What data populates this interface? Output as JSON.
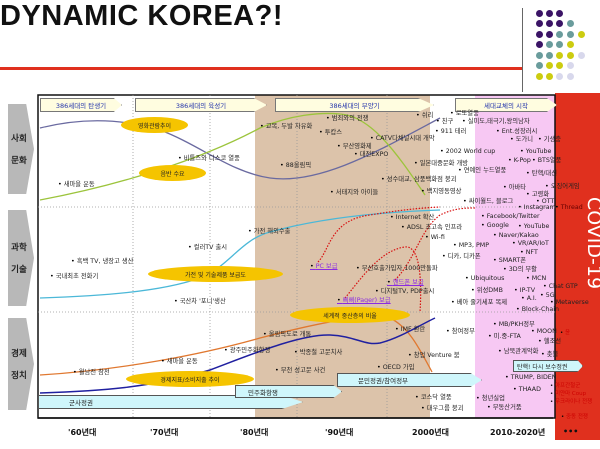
{
  "title": "DYNAMIC KOREA?!",
  "colors": {
    "accent_red": "#e0301e",
    "brown_band": "#dcc3aa",
    "pink_band": "#f7c8f3",
    "ellipse": "#f5c400"
  },
  "sides": [
    {
      "line1": "사회",
      "line2": "문화"
    },
    {
      "line1": "과학",
      "line2": "기술"
    },
    {
      "line1": "경제",
      "line2": "정치"
    }
  ],
  "headers": [
    "386세대의 탄생기",
    "386세대의 육성기",
    "386세대의 부양기",
    "세대교체의 시작"
  ],
  "covid": "COVID-19",
  "axis": [
    "'60년대",
    "'70년대",
    "'80년대",
    "'90년대",
    "2000년대",
    "2010-2020년",
    "•••"
  ],
  "social": {
    "ellipses": [
      "영화관람추이",
      "음반 수요"
    ],
    "items": [
      "새마을 운동",
      "비틀즈와 디스코 열풍",
      "교복, 두발 자유화",
      "88올림픽",
      "범죄와의 전쟁",
      "투캅스",
      "CATV다채널시대 개막",
      "부산영화제",
      "대전EXPO",
      "서태지와 아이들",
      "성수대교, 삼풍백화점 붕괴",
      "일본대중문화 개방",
      "백지영동영상",
      "쉬리",
      "친구",
      "로또열풍",
      "실미도,태극기,왕의남자",
      "911 테러",
      "Ent.성장러시",
      "도가니",
      "기생충",
      "2002 World cup",
      "YouTube",
      "K-Pop",
      "BTS열풍",
      "연예인 누드열풍",
      "탄핵/대선",
      "아바타",
      "오징어게임",
      "고령화",
      "싸이월드, 블로그",
      "OTT",
      "Instagram",
      "Thread"
    ]
  },
  "tech": {
    "ellipses": [
      "가전 및 기술제품 보급도"
    ],
    "items": [
      "국내최초 전화기",
      "흑백 TV, 냉장고 생산",
      "컬러TV 출시",
      "가전 해외수출",
      "국산차 '포니'생산",
      "Internet 확산",
      "ADSL 초고속 인프라",
      "Wi-fi",
      "무선호출가입자 1000만돌파",
      "디지털TV, PDP출시",
      "MP3, PMP",
      "디카, 디카폰",
      "Facebook/Twitter",
      "Google",
      "YouTube",
      "Naver/Kakao",
      "VR/AR/IoT",
      "NFT",
      "SMART폰",
      "3D의 부활",
      "Ubiquitous",
      "MCN",
      "위성DMB",
      "IP-TV",
      "Chat GTP",
      "A.I.",
      "5G",
      "Metaverse",
      "베아 줄기세포 복제",
      "Block-Chain"
    ],
    "links": [
      "PC 보급",
      "핸드폰 보급",
      "삐삐(Pager) 보급"
    ]
  },
  "econ": {
    "ellipses": [
      "세계적 중산층의 비율",
      "경제지표/소비지출 추이"
    ],
    "banners": [
      "군사정권",
      "민주화항쟁",
      "문민정권/참여정부",
      "탄핵! 다시 보수정권"
    ],
    "items": [
      "월남전 참전",
      "새마을 운동",
      "광주민주화항쟁",
      "올림픽도로 개통",
      "박종철 고문치사",
      "부천 성고문 사건",
      "IMF 환란",
      "참여정부",
      "창업 Venture 붐",
      "OECD 가입",
      "코스닥 열풍",
      "대우그룹 붕괴",
      "MB/PKH정부",
      "MOON",
      "미.중-FTA",
      "헬조선",
      "남북관계악화",
      "촛불",
      "TRUMP, BIDEN",
      "THAAD",
      "청년실업",
      "부동산거품"
    ],
    "red_items": [
      "윤",
      "아프간철군",
      "미얀마 Coup",
      "우크라이나 전쟁",
      "중동 전쟁"
    ]
  }
}
